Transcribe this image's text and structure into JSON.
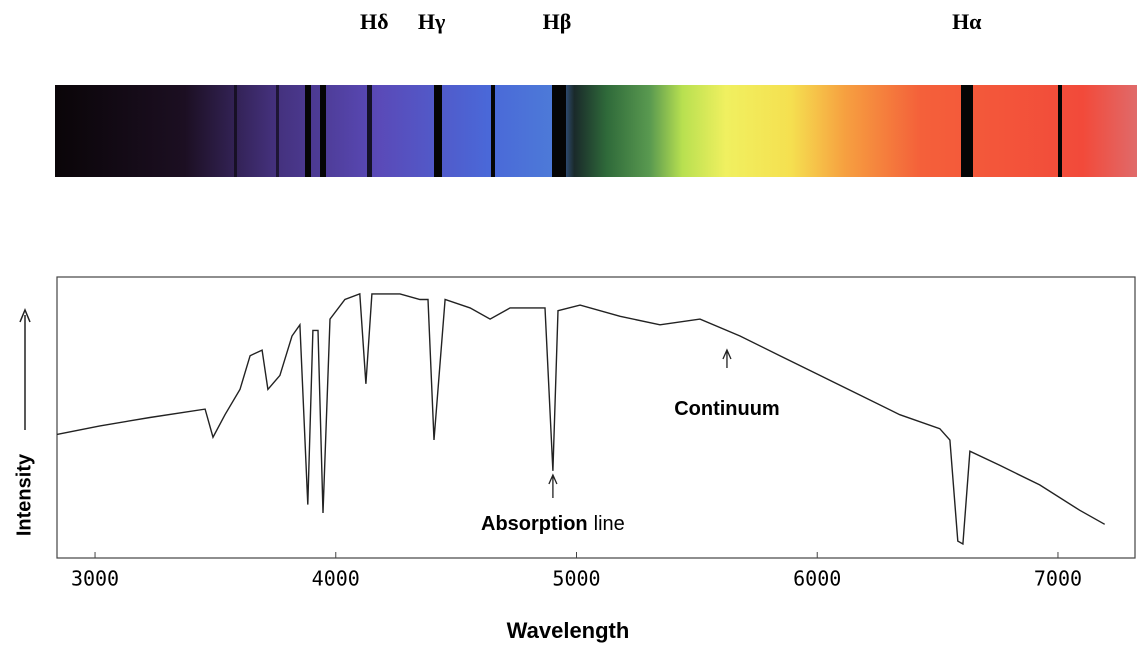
{
  "chart_data": {
    "type": "line",
    "xlabel": "Wavelength",
    "ylabel": "Intensity",
    "xlim": [
      2842,
      7320
    ],
    "ylim": [
      0,
      100
    ],
    "xticks": [
      3000,
      4000,
      5000,
      6000,
      7000
    ],
    "color": "#222222",
    "x": [
      2842,
      3020,
      3228,
      3457,
      3490,
      3540,
      3602,
      3644,
      3694,
      3718,
      3768,
      3818,
      3851,
      3884,
      3905,
      3926,
      3947,
      3976,
      4038,
      4100,
      4125,
      4150,
      4267,
      4350,
      4383,
      4408,
      4454,
      4558,
      4641,
      4724,
      4869,
      4902,
      4923,
      5015,
      5181,
      5347,
      5513,
      5679,
      5845,
      6011,
      6177,
      6343,
      6509,
      6551,
      6584,
      6605,
      6634,
      6758,
      6924,
      7090,
      7194
    ],
    "values": [
      44,
      47,
      50,
      53,
      43,
      51,
      60,
      72,
      74,
      60,
      65,
      79,
      83,
      19,
      81,
      81,
      16,
      85,
      92,
      94,
      62,
      94,
      94,
      92,
      92,
      42,
      92,
      89,
      85,
      89,
      89,
      31,
      88,
      90,
      86,
      83,
      85,
      79,
      72,
      65,
      58,
      51,
      46,
      42,
      6,
      5,
      38,
      33,
      26,
      17,
      12
    ],
    "spectral_lines": [
      {
        "label": "Hδ",
        "x": 4102
      },
      {
        "label": "Hγ",
        "x": 4340
      },
      {
        "label": "Hβ",
        "x": 4861
      },
      {
        "label": "Hα",
        "x": 6563
      }
    ],
    "annotations": [
      {
        "bold": "Continuum",
        "x": 5625
      },
      {
        "bold": "Absorption",
        "text": "line",
        "x": 4902
      }
    ]
  }
}
